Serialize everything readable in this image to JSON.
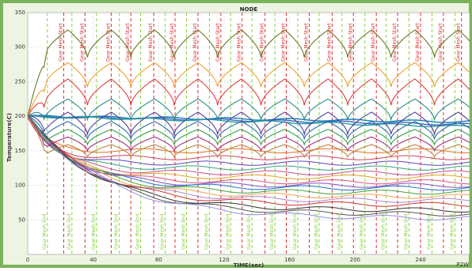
{
  "chart_data": {
    "type": "line",
    "title": "NODE",
    "xlabel": "TIME(sec)",
    "ylabel": "Temperature(C)",
    "corner_label": "P2W",
    "xlim": [
      0,
      270
    ],
    "ylim": [
      0,
      350
    ],
    "x_ticks": [
      0,
      40,
      80,
      120,
      160,
      200,
      240
    ],
    "y_ticks": [
      50,
      100,
      150,
      200,
      250,
      300,
      350
    ],
    "grid": true,
    "legend": "none",
    "colors": {
      "plot_bg": "#ffffff",
      "grid": "#c8c8c8",
      "start_marker": "#d83030",
      "end_marker": "#8ad040",
      "frame": "#7bb35a"
    },
    "event_markers": {
      "start": [
        22,
        35,
        51,
        63,
        77,
        90,
        104,
        118,
        131,
        145,
        158,
        172,
        186,
        199,
        213,
        226,
        240,
        254,
        265
      ],
      "end": [
        12,
        27,
        42,
        56,
        69,
        84,
        97,
        111,
        124,
        137,
        151,
        165,
        178,
        192,
        206,
        219,
        233,
        247,
        261
      ],
      "start_label": "Gear Mesh Start",
      "end_label": "Gear Mesh End"
    },
    "cycle_period": 26.5,
    "series_cycling": [
      {
        "color": "#6b7a2a",
        "base": 305,
        "amp": 40
      },
      {
        "color": "#f0a030",
        "base": 260,
        "amp": 35
      },
      {
        "color": "#e04040",
        "base": 235,
        "amp": 38
      },
      {
        "color": "#2a8c8c",
        "base": 210,
        "amp": 30
      },
      {
        "color": "#5040a0",
        "base": 190,
        "amp": 32
      },
      {
        "color": "#2a6ab0",
        "base": 180,
        "amp": 25
      },
      {
        "color": "#30a050",
        "base": 170,
        "amp": 22
      },
      {
        "color": "#a03080",
        "base": 160,
        "amp": 20
      },
      {
        "color": "#c08040",
        "base": 150,
        "amp": 18
      }
    ],
    "series_flat": [
      {
        "color": "#1080b0",
        "start": 200,
        "end": 192
      },
      {
        "color": "#4060c0",
        "start": 200,
        "end": 188
      },
      {
        "color": "#20a0a0",
        "start": 200,
        "end": 185
      }
    ],
    "series_decay": [
      {
        "color": "#e07020",
        "end": 150
      },
      {
        "color": "#d04060",
        "end": 140
      },
      {
        "color": "#6040c0",
        "end": 132
      },
      {
        "color": "#30a080",
        "end": 125
      },
      {
        "color": "#c05090",
        "end": 118
      },
      {
        "color": "#e0a020",
        "end": 112
      },
      {
        "color": "#e05080",
        "end": 105
      },
      {
        "color": "#8050c0",
        "end": 100
      },
      {
        "color": "#2070d0",
        "end": 96
      },
      {
        "color": "#40a040",
        "end": 90
      },
      {
        "color": "#f0a050",
        "end": 84
      },
      {
        "color": "#b080d0",
        "end": 78
      },
      {
        "color": "#d03030",
        "end": 72
      },
      {
        "color": "#303030",
        "end": 64
      },
      {
        "color": "#555555",
        "end": 58
      },
      {
        "color": "#9090e0",
        "end": 52
      }
    ]
  }
}
